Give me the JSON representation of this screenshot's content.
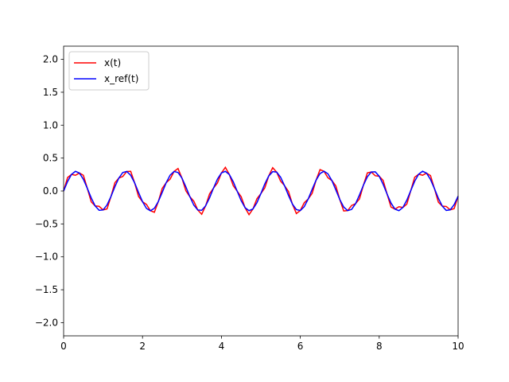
{
  "chart_data": {
    "type": "line",
    "x": [
      0,
      0.1,
      0.2,
      0.3,
      0.4,
      0.5,
      0.6,
      0.7,
      0.8,
      0.9,
      1,
      1.1,
      1.2,
      1.3,
      1.4,
      1.5,
      1.6,
      1.7,
      1.8,
      1.9,
      2,
      2.1,
      2.2,
      2.3,
      2.4,
      2.5,
      2.6,
      2.7,
      2.8,
      2.9,
      3,
      3.1,
      3.2,
      3.3,
      3.4,
      3.5,
      3.6,
      3.7,
      3.8,
      3.9,
      4,
      4.1,
      4.2,
      4.3,
      4.4,
      4.5,
      4.6,
      4.7,
      4.8,
      4.9,
      5,
      5.1,
      5.2,
      5.3,
      5.4,
      5.5,
      5.6,
      5.7,
      5.8,
      5.9,
      6,
      6.1,
      6.2,
      6.3,
      6.4,
      6.5,
      6.6,
      6.7,
      6.8,
      6.9,
      7,
      7.1,
      7.2,
      7.3,
      7.4,
      7.5,
      7.6,
      7.7,
      7.8,
      7.9,
      8,
      8.1,
      8.2,
      8.3,
      8.4,
      8.5,
      8.6,
      8.7,
      8.8,
      8.9,
      9,
      9.1,
      9.2,
      9.3,
      9.4,
      9.5,
      9.6,
      9.7,
      9.8,
      9.9,
      10
    ],
    "series": [
      {
        "name": "x(t)",
        "color": "#ff0000",
        "values": [
          0,
          0.204,
          0.252,
          0.239,
          0.273,
          0.239,
          0.042,
          -0.165,
          -0.227,
          -0.233,
          -0.288,
          -0.272,
          -0.084,
          0.125,
          0.197,
          0.221,
          0.297,
          0.299,
          0.124,
          -0.083,
          -0.163,
          -0.204,
          -0.3,
          -0.323,
          -0.161,
          0.04,
          0.126,
          0.181,
          0.297,
          0.341,
          0.195,
          0.002,
          -0.086,
          -0.154,
          -0.288,
          -0.353,
          -0.225,
          -0.043,
          0.045,
          0.122,
          0.274,
          0.359,
          0.251,
          0.081,
          -0.003,
          -0.086,
          -0.254,
          -0.359,
          -0.272,
          -0.118,
          -0.04,
          0.048,
          0.229,
          0.354,
          0.287,
          0.15,
          0.081,
          -0.007,
          -0.199,
          -0.342,
          -0.296,
          -0.178,
          -0.121,
          -0.035,
          0.165,
          0.325,
          0.3,
          0.201,
          0.159,
          0.077,
          -0.128,
          -0.303,
          -0.298,
          -0.22,
          -0.193,
          -0.119,
          0.089,
          0.275,
          0.289,
          0.232,
          0.224,
          0.16,
          -0.047,
          -0.244,
          -0.275,
          -0.239,
          -0.25,
          -0.199,
          0.005,
          0.209,
          0.255,
          0.24,
          0.271,
          0.235,
          0.037,
          -0.17,
          -0.23,
          -0.235,
          -0.286,
          -0.267,
          -0.079
        ]
      },
      {
        "name": "x_ref(t)",
        "color": "#0000ff",
        "values": [
          0,
          0.144,
          0.252,
          0.299,
          0.273,
          0.179,
          0.042,
          -0.105,
          -0.227,
          -0.293,
          -0.288,
          -0.212,
          -0.084,
          0.065,
          0.197,
          0.281,
          0.297,
          0.239,
          0.124,
          -0.023,
          -0.163,
          -0.264,
          -0.3,
          -0.263,
          -0.161,
          -0.02,
          0.126,
          0.241,
          0.297,
          0.281,
          0.195,
          0.062,
          -0.086,
          -0.214,
          -0.288,
          -0.293,
          -0.225,
          -0.103,
          0.045,
          0.182,
          0.274,
          0.299,
          0.251,
          0.141,
          -0.003,
          -0.146,
          -0.254,
          -0.299,
          -0.272,
          -0.178,
          -0.04,
          0.108,
          0.229,
          0.294,
          0.287,
          0.21,
          0.081,
          -0.067,
          -0.199,
          -0.282,
          -0.296,
          -0.238,
          -0.121,
          0.025,
          0.165,
          0.265,
          0.3,
          0.261,
          0.159,
          0.017,
          -0.128,
          -0.243,
          -0.298,
          -0.28,
          -0.193,
          -0.059,
          0.089,
          0.215,
          0.289,
          0.292,
          0.224,
          0.1,
          -0.047,
          -0.184,
          -0.275,
          -0.299,
          -0.25,
          -0.139,
          0.005,
          0.149,
          0.255,
          0.3,
          0.271,
          0.175,
          0.037,
          -0.11,
          -0.23,
          -0.295,
          -0.286,
          -0.207,
          -0.079
        ]
      }
    ],
    "xlim": [
      0,
      10
    ],
    "xticks": [
      0,
      2,
      4,
      6,
      8,
      10
    ],
    "ylim": [
      -2.2,
      2.2
    ],
    "yticks": [
      {
        "value": -2,
        "label": "−2.0"
      },
      {
        "value": -1.5,
        "label": "−1.5"
      },
      {
        "value": -1,
        "label": "−1.0"
      },
      {
        "value": -0.5,
        "label": "−0.5"
      },
      {
        "value": 0,
        "label": "0.0"
      },
      0.5,
      {
        "value": 1,
        "label": "1.0"
      },
      1.5,
      {
        "value": 2,
        "label": "2.0"
      }
    ],
    "legend": "upper left",
    "grid": false
  }
}
